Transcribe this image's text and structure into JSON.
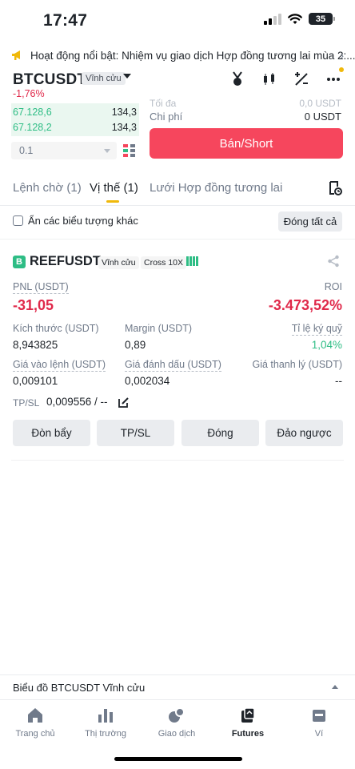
{
  "status_bar": {
    "time": "17:47",
    "battery": "35"
  },
  "announcement": {
    "text": "Hoạt động nổi bật: Nhiệm vụ giao dịch Hợp đồng tương lai mùa 2:..."
  },
  "header": {
    "symbol": "BTCUSDT",
    "contract_type": "Vĩnh cửu",
    "change": "-1,76%"
  },
  "order_book": {
    "rows": [
      {
        "price": "67.128,6",
        "qty": "134,3"
      },
      {
        "price": "67.128,2",
        "qty": "134,3"
      }
    ],
    "precision": "0.1"
  },
  "order_panel": {
    "fee_label_partial": "Tối đa",
    "fee_value_partial": "0,0 USDT",
    "cost_label": "Chi phí",
    "cost_value": "0 USDT",
    "sell_button": "Bán/Short"
  },
  "tabs": [
    {
      "label": "Lệnh chờ (1)"
    },
    {
      "label": "Vị thế (1)"
    },
    {
      "label": "Lưới Hợp đồng tương lai"
    }
  ],
  "filter": {
    "hide_label": "Ẩn các biểu tượng khác",
    "close_all": "Đóng tất cả"
  },
  "position": {
    "badge": "B",
    "symbol": "REEFUSDT",
    "type_tag": "Vĩnh cửu",
    "margin_tag": "Cross 10X",
    "pnl_label": "PNL (USDT)",
    "pnl_value": "-31,05",
    "roi_label": "ROI",
    "roi_value": "-3.473,52%",
    "size_label": "Kích thước (USDT)",
    "size_value": "8,943825",
    "margin_label": "Margin (USDT)",
    "margin_value": "0,89",
    "margin_ratio_label": "Tỉ lệ ký quỹ",
    "margin_ratio_value": "1,04%",
    "entry_label": "Giá vào lệnh (USDT)",
    "entry_value": "0,009101",
    "mark_label": "Giá đánh dấu (USDT)",
    "mark_value": "0,002034",
    "liq_label": "Giá thanh lý (USDT)",
    "liq_value": "--",
    "tpsl_label": "TP/SL",
    "tpsl_value": "0,009556 / --",
    "actions": [
      "Đòn bẩy",
      "TP/SL",
      "Đóng",
      "Đảo ngược"
    ]
  },
  "chart_bar": {
    "label": "Biểu đồ BTCUSDT Vĩnh cửu"
  },
  "bottom_nav": [
    {
      "label": "Trang chủ"
    },
    {
      "label": "Thị trường"
    },
    {
      "label": "Giao dịch"
    },
    {
      "label": "Futures"
    },
    {
      "label": "Ví"
    }
  ],
  "colors": {
    "accent": "#f0b90b",
    "sell": "#f6465d",
    "up": "#2ebd85",
    "down": "#e0294a"
  }
}
